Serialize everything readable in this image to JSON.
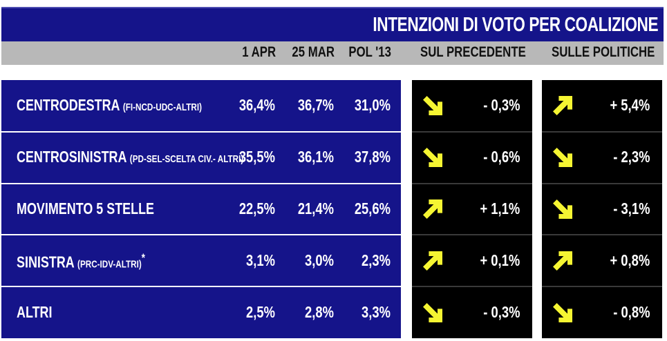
{
  "title": "INTENZIONI DI VOTO PER COALIZIONE",
  "columns": [
    "1 APR",
    "25 MAR",
    "POL '13",
    "SUL PRECEDENTE",
    "SULLE POLITICHE"
  ],
  "rows": [
    {
      "name": "CENTRODESTRA",
      "sub": "(FI-NCD-UDC-ALTRI)",
      "star": "",
      "v1": "36,4%",
      "v2": "36,7%",
      "v3": "31,0%",
      "d1": "- 0,3%",
      "d1_dir": "down",
      "d2": "+ 5,4%",
      "d2_dir": "up"
    },
    {
      "name": "CENTROSINISTRA",
      "sub": "(PD-SEL-SCELTA CIV.- ALTRI)",
      "star": "",
      "v1": "35,5%",
      "v2": "36,1%",
      "v3": "37,8%",
      "d1": "- 0,6%",
      "d1_dir": "down",
      "d2": "- 2,3%",
      "d2_dir": "down"
    },
    {
      "name": "MOVIMENTO 5 STELLE",
      "sub": "",
      "star": "",
      "v1": "22,5%",
      "v2": "21,4%",
      "v3": "25,6%",
      "d1": "+ 1,1%",
      "d1_dir": "up",
      "d2": "- 3,1%",
      "d2_dir": "down"
    },
    {
      "name": "SINISTRA",
      "sub": "(PRC-IDV-ALTRI)",
      "star": "*",
      "v1": "3,1%",
      "v2": "3,0%",
      "v3": "2,3%",
      "d1": "+ 0,1%",
      "d1_dir": "up",
      "d2": "+ 0,8%",
      "d2_dir": "up"
    },
    {
      "name": "ALTRI",
      "sub": "",
      "star": "",
      "v1": "2,5%",
      "v2": "2,8%",
      "v3": "3,3%",
      "d1": "- 0,3%",
      "d1_dir": "down",
      "d2": "- 0,8%",
      "d2_dir": "down"
    }
  ],
  "colors": {
    "panel": "#15148a",
    "header": "#b8b8b8",
    "arrow": "#f5f532",
    "delta_bg": "#000000"
  },
  "chart_data": {
    "type": "table",
    "title": "INTENZIONI DI VOTO PER COALIZIONE",
    "columns": [
      "1 APR",
      "25 MAR",
      "POL '13",
      "SUL PRECEDENTE",
      "SULLE POLITICHE"
    ],
    "rows": [
      [
        "CENTRODESTRA (FI-NCD-UDC-ALTRI)",
        36.4,
        36.7,
        31.0,
        -0.3,
        5.4
      ],
      [
        "CENTROSINISTRA (PD-SEL-SCELTA CIV.- ALTRI)",
        35.5,
        36.1,
        37.8,
        -0.6,
        -2.3
      ],
      [
        "MOVIMENTO 5 STELLE",
        22.5,
        21.4,
        25.6,
        1.1,
        -3.1
      ],
      [
        "SINISTRA (PRC-IDV-ALTRI)*",
        3.1,
        3.0,
        2.3,
        0.1,
        0.8
      ],
      [
        "ALTRI",
        2.5,
        2.8,
        3.3,
        -0.3,
        -0.8
      ]
    ]
  }
}
